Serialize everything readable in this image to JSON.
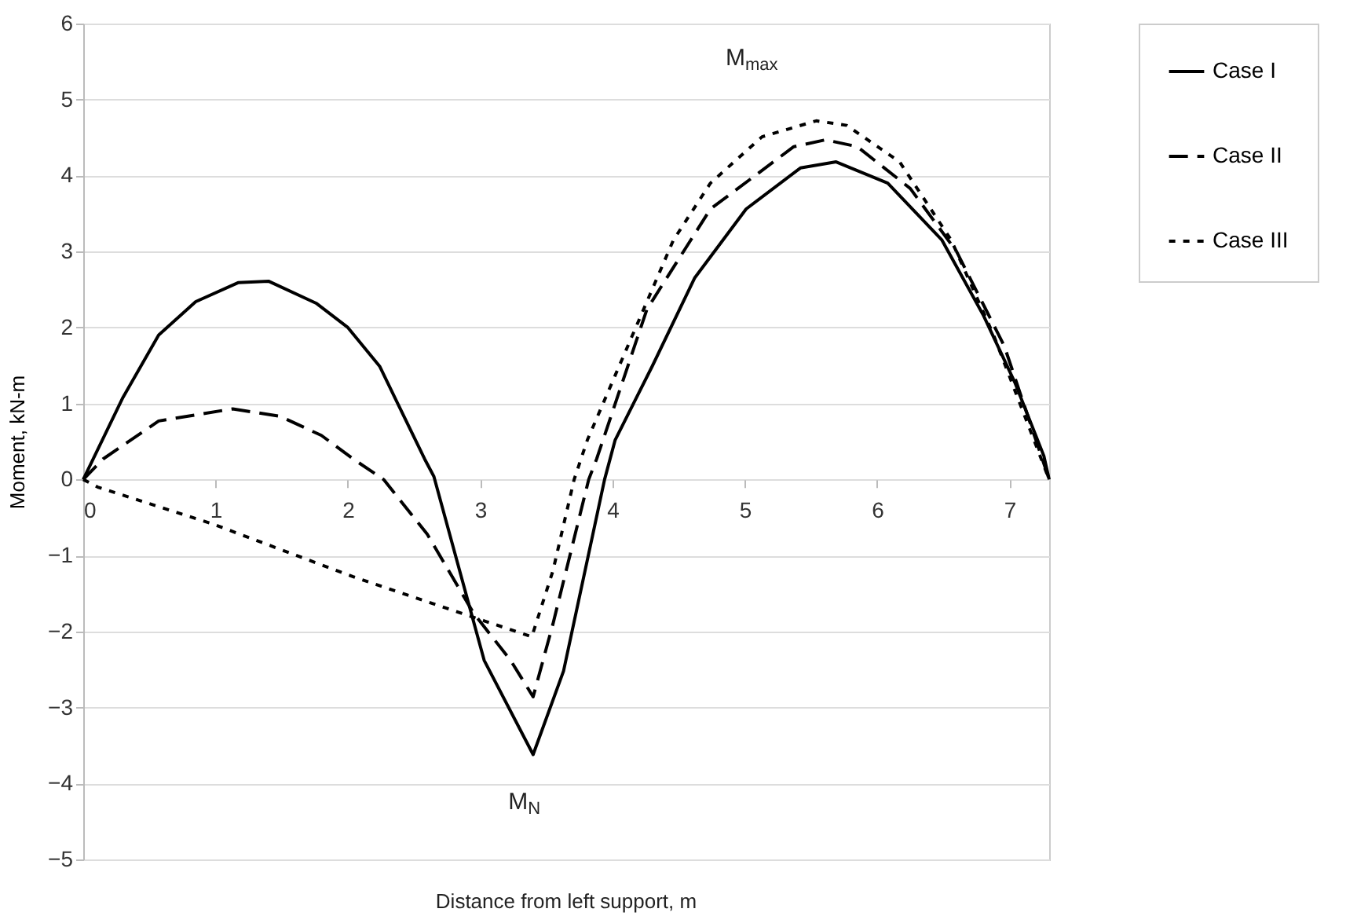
{
  "chart_data": {
    "type": "line",
    "xlabel": "Distance from left support, m",
    "ylabel": "Moment, kN-m",
    "xlim": [
      0,
      7.3
    ],
    "xticks": [
      0,
      1,
      2,
      3,
      4,
      5,
      6,
      7
    ],
    "ylim": [
      -5,
      6
    ],
    "yticks": [
      -5,
      -4,
      -3,
      -2,
      -1,
      0,
      1,
      2,
      3,
      4,
      5,
      6
    ],
    "grid": "y",
    "legend": "right",
    "annotations": [
      "M$_{max}$",
      "M$_{N}$"
    ],
    "series": [
      {
        "name": "Case I",
        "color": "#000000",
        "line_style": "solid",
        "x": [
          0,
          0.3,
          0.57,
          0.85,
          1.17,
          1.4,
          1.76,
          2.0,
          2.24,
          2.58,
          2.65,
          3.03,
          3.4,
          3.63,
          3.94,
          4.02,
          4.3,
          4.62,
          5.01,
          5.42,
          5.69,
          6.08,
          6.49,
          6.8,
          7.04,
          7.26,
          7.3
        ],
        "values": [
          0,
          1.08,
          1.9,
          2.34,
          2.59,
          2.61,
          2.32,
          2.0,
          1.49,
          0.27,
          0.04,
          -2.38,
          -3.62,
          -2.52,
          0,
          0.52,
          1.49,
          2.65,
          3.56,
          4.1,
          4.18,
          3.9,
          3.15,
          2.17,
          1.28,
          0.31,
          0
        ]
      },
      {
        "name": "Case II",
        "color": "#000000",
        "line_style": "dashed",
        "x": [
          0,
          0.15,
          0.57,
          1.13,
          1.49,
          1.8,
          2.04,
          2.27,
          2.6,
          2.95,
          3.23,
          3.4,
          3.55,
          3.82,
          3.88,
          4.26,
          4.74,
          5.37,
          5.61,
          5.85,
          6.25,
          6.6,
          6.96,
          7.3
        ],
        "values": [
          0,
          0.27,
          0.77,
          0.93,
          0.83,
          0.58,
          0.27,
          0,
          -0.72,
          -1.76,
          -2.38,
          -2.86,
          -1.9,
          0,
          0.27,
          2.24,
          3.56,
          4.38,
          4.47,
          4.38,
          3.83,
          3.0,
          1.76,
          0
        ]
      },
      {
        "name": "Case III",
        "color": "#000000",
        "line_style": "dotted",
        "x": [
          0,
          0.11,
          0.97,
          2.04,
          3.03,
          3.39,
          3.55,
          3.71,
          3.81,
          4.46,
          4.74,
          5.13,
          5.54,
          5.77,
          6.17,
          6.56,
          6.88,
          7.3
        ],
        "values": [
          0,
          -0.1,
          -0.58,
          -1.28,
          -1.86,
          -2.07,
          -1.2,
          0,
          0.52,
          3.15,
          3.9,
          4.51,
          4.72,
          4.66,
          4.18,
          3.15,
          1.9,
          0
        ]
      }
    ]
  }
}
